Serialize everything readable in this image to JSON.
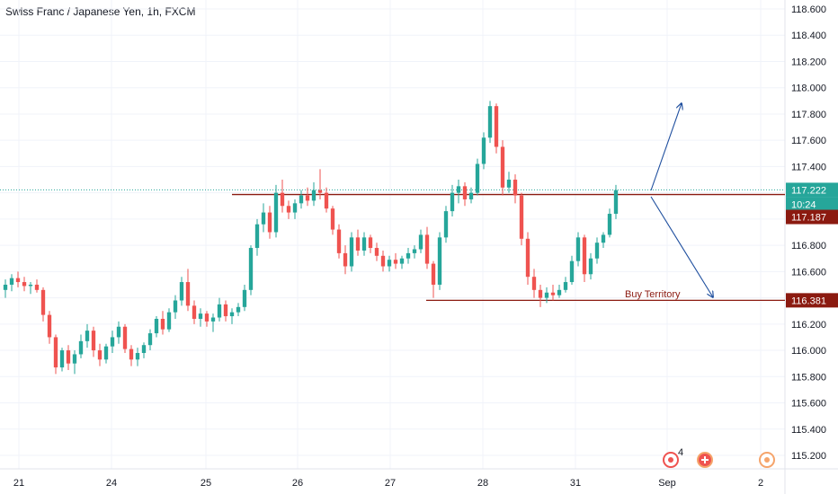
{
  "header": {
    "title": "Swiss Franc / Japanese Yen, 1h, FXCM"
  },
  "colors": {
    "up": "#26a69a",
    "down": "#ef5350",
    "level_line": "#8b1a10",
    "arrow": "#1e4e9e",
    "grid": "#f0f3fa",
    "price_tag": "#26a69a",
    "level_tag": "#8b1a10"
  },
  "icons": [
    "events-icon",
    "dividends-icon",
    "earnings-icon"
  ],
  "event_badge": "4",
  "countdown": "10:24",
  "chart_data": {
    "type": "candlestick",
    "y_axis": {
      "min": 115.1,
      "max": 118.65,
      "ticks": [
        "118.600",
        "118.400",
        "118.200",
        "118.000",
        "117.800",
        "117.600",
        "117.400",
        "117.200",
        "117.000",
        "116.800",
        "116.600",
        "116.400",
        "116.200",
        "116.000",
        "115.800",
        "115.600",
        "115.400",
        "115.200"
      ]
    },
    "x_axis": {
      "ticks": [
        "21",
        "24",
        "25",
        "26",
        "27",
        "28",
        "31",
        "Sep",
        "2"
      ]
    },
    "grid": true,
    "current_price": "117.222",
    "levels": [
      {
        "price": 117.187,
        "label": "117.187"
      },
      {
        "price": 116.381,
        "label": "116.381",
        "annotation": "Buy Territory"
      }
    ],
    "series_ohlc": [
      [
        116.46,
        116.54,
        116.4,
        116.5
      ],
      [
        116.5,
        116.58,
        116.45,
        116.55
      ],
      [
        116.55,
        116.6,
        116.48,
        116.52
      ],
      [
        116.52,
        116.56,
        116.45,
        116.49
      ],
      [
        116.49,
        116.52,
        116.43,
        116.5
      ],
      [
        116.5,
        116.54,
        116.44,
        116.46
      ],
      [
        116.46,
        116.48,
        116.22,
        116.27
      ],
      [
        116.27,
        116.3,
        116.05,
        116.1
      ],
      [
        116.1,
        116.12,
        115.82,
        115.87
      ],
      [
        115.87,
        116.02,
        115.84,
        116.0
      ],
      [
        116.0,
        116.04,
        115.85,
        115.9
      ],
      [
        115.9,
        116.0,
        115.82,
        115.97
      ],
      [
        115.97,
        116.12,
        115.94,
        116.07
      ],
      [
        116.07,
        116.2,
        116.02,
        116.15
      ],
      [
        116.15,
        116.18,
        115.95,
        116.0
      ],
      [
        116.0,
        116.05,
        115.88,
        115.93
      ],
      [
        115.93,
        116.05,
        115.9,
        116.03
      ],
      [
        116.03,
        116.15,
        115.98,
        116.1
      ],
      [
        116.1,
        116.22,
        116.05,
        116.18
      ],
      [
        116.18,
        116.2,
        115.98,
        116.01
      ],
      [
        116.01,
        116.04,
        115.88,
        115.93
      ],
      [
        115.93,
        116.02,
        115.88,
        115.98
      ],
      [
        115.98,
        116.06,
        115.94,
        116.04
      ],
      [
        116.04,
        116.16,
        116.0,
        116.13
      ],
      [
        116.13,
        116.26,
        116.1,
        116.24
      ],
      [
        116.24,
        116.3,
        116.12,
        116.16
      ],
      [
        116.16,
        116.32,
        116.14,
        116.29
      ],
      [
        116.29,
        116.42,
        116.24,
        116.38
      ],
      [
        116.38,
        116.56,
        116.34,
        116.52
      ],
      [
        116.52,
        116.62,
        116.3,
        116.34
      ],
      [
        116.34,
        116.38,
        116.2,
        116.24
      ],
      [
        116.24,
        116.32,
        116.18,
        116.28
      ],
      [
        116.28,
        116.3,
        116.18,
        116.22
      ],
      [
        116.22,
        116.28,
        116.14,
        116.25
      ],
      [
        116.25,
        116.4,
        116.22,
        116.35
      ],
      [
        116.35,
        116.38,
        116.22,
        116.26
      ],
      [
        116.26,
        116.32,
        116.2,
        116.29
      ],
      [
        116.29,
        116.36,
        116.26,
        116.33
      ],
      [
        116.33,
        116.5,
        116.3,
        116.46
      ],
      [
        116.46,
        116.8,
        116.42,
        116.78
      ],
      [
        116.78,
        117.0,
        116.72,
        116.96
      ],
      [
        116.96,
        117.12,
        116.9,
        117.05
      ],
      [
        117.05,
        117.1,
        116.85,
        116.9
      ],
      [
        116.9,
        117.26,
        116.86,
        117.2
      ],
      [
        117.2,
        117.3,
        117.05,
        117.1
      ],
      [
        117.1,
        117.14,
        117.0,
        117.05
      ],
      [
        117.05,
        117.15,
        117.0,
        117.12
      ],
      [
        117.12,
        117.22,
        117.08,
        117.18
      ],
      [
        117.18,
        117.24,
        117.1,
        117.14
      ],
      [
        117.14,
        117.28,
        117.1,
        117.22
      ],
      [
        117.22,
        117.38,
        117.15,
        117.2
      ],
      [
        117.2,
        117.24,
        117.05,
        117.08
      ],
      [
        117.08,
        117.1,
        116.88,
        116.92
      ],
      [
        116.92,
        116.96,
        116.7,
        116.74
      ],
      [
        116.74,
        116.8,
        116.58,
        116.64
      ],
      [
        116.64,
        116.9,
        116.6,
        116.86
      ],
      [
        116.86,
        116.92,
        116.72,
        116.76
      ],
      [
        116.76,
        116.9,
        116.72,
        116.86
      ],
      [
        116.86,
        116.88,
        116.74,
        116.78
      ],
      [
        116.78,
        116.82,
        116.68,
        116.72
      ],
      [
        116.72,
        116.76,
        116.6,
        116.64
      ],
      [
        116.64,
        116.72,
        116.6,
        116.69
      ],
      [
        116.69,
        116.74,
        116.62,
        116.66
      ],
      [
        116.66,
        116.72,
        116.62,
        116.7
      ],
      [
        116.7,
        116.78,
        116.66,
        116.74
      ],
      [
        116.74,
        116.8,
        116.7,
        116.77
      ],
      [
        116.77,
        116.92,
        116.74,
        116.88
      ],
      [
        116.88,
        116.94,
        116.62,
        116.66
      ],
      [
        116.66,
        116.68,
        116.4,
        116.5
      ],
      [
        116.5,
        116.9,
        116.46,
        116.86
      ],
      [
        116.86,
        117.1,
        116.82,
        117.06
      ],
      [
        117.06,
        117.26,
        117.02,
        117.2
      ],
      [
        117.2,
        117.3,
        117.12,
        117.25
      ],
      [
        117.25,
        117.28,
        117.1,
        117.15
      ],
      [
        117.15,
        117.24,
        117.12,
        117.2
      ],
      [
        117.2,
        117.46,
        117.18,
        117.42
      ],
      [
        117.42,
        117.66,
        117.38,
        117.62
      ],
      [
        117.62,
        117.9,
        117.58,
        117.86
      ],
      [
        117.86,
        117.88,
        117.5,
        117.55
      ],
      [
        117.55,
        117.6,
        117.18,
        117.24
      ],
      [
        117.24,
        117.36,
        117.2,
        117.3
      ],
      [
        117.3,
        117.34,
        117.12,
        117.18
      ],
      [
        117.18,
        117.2,
        116.8,
        116.85
      ],
      [
        116.85,
        116.9,
        116.5,
        116.56
      ],
      [
        116.56,
        116.62,
        116.4,
        116.46
      ],
      [
        116.46,
        116.5,
        116.33,
        116.4
      ],
      [
        116.4,
        116.48,
        116.36,
        116.44
      ],
      [
        116.44,
        116.5,
        116.38,
        116.42
      ],
      [
        116.42,
        116.5,
        116.4,
        116.46
      ],
      [
        116.46,
        116.56,
        116.44,
        116.52
      ],
      [
        116.52,
        116.72,
        116.5,
        116.68
      ],
      [
        116.68,
        116.9,
        116.64,
        116.86
      ],
      [
        116.86,
        116.88,
        116.52,
        116.58
      ],
      [
        116.58,
        116.74,
        116.54,
        116.7
      ],
      [
        116.7,
        116.86,
        116.66,
        116.82
      ],
      [
        116.82,
        116.9,
        116.78,
        116.88
      ],
      [
        116.88,
        117.08,
        116.86,
        117.04
      ],
      [
        117.04,
        117.26,
        117.0,
        117.22
      ]
    ],
    "annotations": [
      "Buy Territory"
    ]
  }
}
